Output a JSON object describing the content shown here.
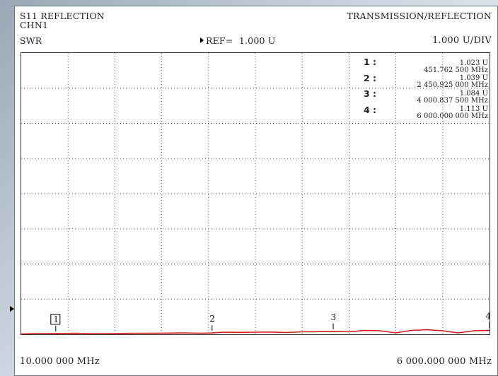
{
  "header": {
    "left_title": "S11 REFLECTION",
    "channel": "CHN1",
    "right_title": "TRANSMISSION/REFLECTION",
    "format": "SWR",
    "ref_label": "REF=",
    "ref_value": "1.000 U",
    "scale": "1.000 U/DIV"
  },
  "footer": {
    "start": "10.000 000 MHz",
    "stop": "6 000.000 000 MHz"
  },
  "markers": [
    {
      "id": "1",
      "label": "1 :",
      "value": "1.023 U",
      "freq": "451.762 500 MHz",
      "freq_mhz": 451.7625,
      "swr": 1.023
    },
    {
      "id": "2",
      "label": "2 :",
      "value": "1.039 U",
      "freq": "2 450.925 000 MHz",
      "freq_mhz": 2450.925,
      "swr": 1.039
    },
    {
      "id": "3",
      "label": "3 :",
      "value": "1.084 U",
      "freq": "4 000.837 500 MHz",
      "freq_mhz": 4000.8375,
      "swr": 1.084
    },
    {
      "id": "4",
      "label": "4 :",
      "value": "1.113 U",
      "freq": "6 000.000 000 MHz",
      "freq_mhz": 6000.0,
      "swr": 1.113
    }
  ],
  "chart_data": {
    "type": "line",
    "title": "S11 REFLECTION",
    "xlabel": "",
    "ylabel": "SWR",
    "xlim": [
      10.0,
      6000.0
    ],
    "ylim": [
      1.0,
      9.0
    ],
    "x_divisions": 10,
    "y_divisions": 8,
    "grid": true,
    "trace_color": "#d01a1a",
    "series": [
      {
        "x": [
          10,
          200,
          451.76,
          700,
          900,
          1100,
          1300,
          1500,
          1700,
          1900,
          2100,
          2300,
          2450.93,
          2600,
          2800,
          3000,
          3200,
          3400,
          3600,
          3800,
          4000.84,
          4200,
          4400,
          4600,
          4800,
          5000,
          5200,
          5400,
          5600,
          5800,
          6000
        ],
        "y": [
          1.01,
          1.02,
          1.023,
          1.03,
          1.02,
          1.02,
          1.025,
          1.03,
          1.03,
          1.035,
          1.04,
          1.03,
          1.039,
          1.06,
          1.055,
          1.06,
          1.065,
          1.05,
          1.07,
          1.075,
          1.084,
          1.07,
          1.11,
          1.1,
          1.04,
          1.11,
          1.13,
          1.1,
          1.04,
          1.1,
          1.113
        ]
      }
    ]
  }
}
